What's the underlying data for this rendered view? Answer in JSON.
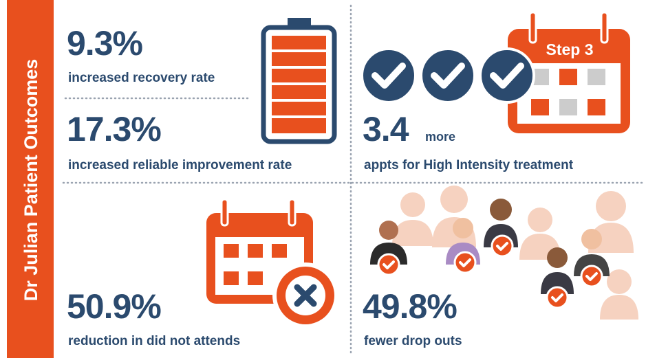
{
  "sidebar": {
    "title": "Dr Julian Patient Outcomes"
  },
  "panels": [
    {
      "stats": [
        {
          "number": "9.3%",
          "caption": "increased recovery rate"
        },
        {
          "number": "17.3%",
          "caption": "increased reliable improvement rate"
        }
      ]
    },
    {
      "number": "3.4",
      "suffix": "more",
      "caption": "appts for High Intensity treatment",
      "calendar_label": "Step 3"
    },
    {
      "number": "50.9%",
      "caption": "reduction in did not attends"
    },
    {
      "number": "49.8%",
      "caption": "fewer drop outs"
    }
  ]
}
